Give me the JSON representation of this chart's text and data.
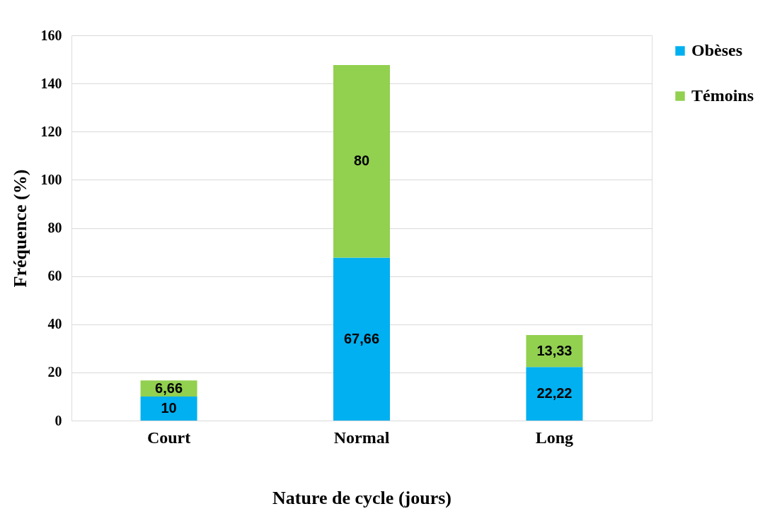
{
  "chart_data": {
    "type": "bar",
    "stacked": true,
    "xlabel": "Nature de cycle (jours)",
    "ylabel": "Fréquence  (%)",
    "categories": [
      "Court",
      "Normal",
      "Long"
    ],
    "series": [
      {
        "name": "Obèses",
        "color": "#00b0f0",
        "values": [
          10,
          67.66,
          22.22
        ],
        "value_labels": [
          "10",
          "67,66",
          "22,22"
        ]
      },
      {
        "name": "Témoins",
        "color": "#92d050",
        "values": [
          6.66,
          80,
          13.33
        ],
        "value_labels": [
          "6,66",
          "80",
          "13,33"
        ]
      }
    ],
    "ylim": [
      0,
      160
    ],
    "yticks": [
      0,
      20,
      40,
      60,
      80,
      100,
      120,
      140,
      160
    ],
    "grid": "y",
    "legend": "right"
  }
}
